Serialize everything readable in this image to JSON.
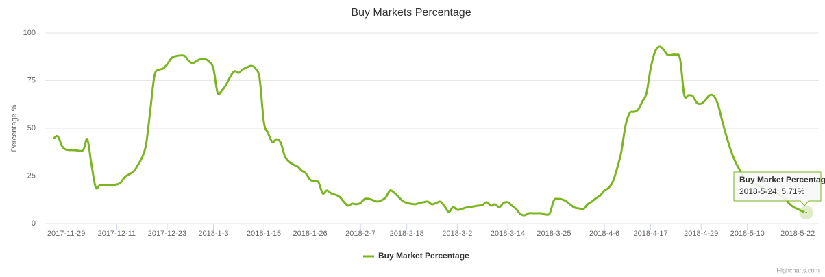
{
  "chart_data": {
    "type": "line",
    "title": "Buy Markets Percentage",
    "y_label": "Percentage %",
    "credit": "Highcharts.com",
    "grid": true,
    "legend": "bottom",
    "xlim": [
      "2017-11-24",
      "2018-5-27"
    ],
    "xticks": [
      "2017-11-29",
      "2017-12-11",
      "2017-12-23",
      "2018-1-3",
      "2018-1-15",
      "2018-1-26",
      "2018-2-7",
      "2018-2-18",
      "2018-3-2",
      "2018-3-14",
      "2018-3-25",
      "2018-4-6",
      "2018-4-17",
      "2018-4-29",
      "2018-5-10",
      "2018-5-22"
    ],
    "ylim": [
      0,
      100
    ],
    "yticks": [
      0,
      25,
      50,
      75,
      100
    ],
    "x": [
      "2017-11-26",
      "2017-11-27",
      "2017-11-28",
      "2017-11-29",
      "2017-12-1",
      "2017-12-3",
      "2017-12-4",
      "2017-12-5",
      "2017-12-6",
      "2017-12-7",
      "2017-12-9",
      "2017-12-11",
      "2017-12-12",
      "2017-12-13",
      "2017-12-15",
      "2017-12-16",
      "2017-12-17",
      "2017-12-18",
      "2017-12-19",
      "2017-12-20",
      "2017-12-21",
      "2017-12-22",
      "2017-12-23",
      "2017-12-24",
      "2017-12-25",
      "2017-12-27",
      "2017-12-28",
      "2017-12-29",
      "2017-12-30",
      "2017-12-31",
      "2018-1-1",
      "2018-1-2",
      "2018-1-3",
      "2018-1-4",
      "2018-1-5",
      "2018-1-6",
      "2018-1-7",
      "2018-1-8",
      "2018-1-9",
      "2018-1-10",
      "2018-1-11",
      "2018-1-12",
      "2018-1-13",
      "2018-1-14",
      "2018-1-15",
      "2018-1-16",
      "2018-1-17",
      "2018-1-18",
      "2018-1-19",
      "2018-1-20",
      "2018-1-21",
      "2018-1-22",
      "2018-1-23",
      "2018-1-24",
      "2018-1-25",
      "2018-1-26",
      "2018-1-27",
      "2018-1-28",
      "2018-1-29",
      "2018-1-30",
      "2018-1-31",
      "2018-2-1",
      "2018-2-2",
      "2018-2-3",
      "2018-2-4",
      "2018-2-5",
      "2018-2-6",
      "2018-2-7",
      "2018-2-8",
      "2018-2-9",
      "2018-2-10",
      "2018-2-11",
      "2018-2-12",
      "2018-2-13",
      "2018-2-14",
      "2018-2-15",
      "2018-2-16",
      "2018-2-17",
      "2018-2-18",
      "2018-2-19",
      "2018-2-20",
      "2018-2-21",
      "2018-2-22",
      "2018-2-23",
      "2018-2-24",
      "2018-2-25",
      "2018-2-26",
      "2018-2-27",
      "2018-2-28",
      "2018-3-1",
      "2018-3-2",
      "2018-3-3",
      "2018-3-4",
      "2018-3-5",
      "2018-3-6",
      "2018-3-7",
      "2018-3-8",
      "2018-3-9",
      "2018-3-10",
      "2018-3-11",
      "2018-3-12",
      "2018-3-13",
      "2018-3-14",
      "2018-3-15",
      "2018-3-16",
      "2018-3-17",
      "2018-3-18",
      "2018-3-19",
      "2018-3-20",
      "2018-3-21",
      "2018-3-22",
      "2018-3-23",
      "2018-3-24",
      "2018-3-25",
      "2018-3-26",
      "2018-3-27",
      "2018-3-28",
      "2018-3-29",
      "2018-3-30",
      "2018-3-31",
      "2018-4-1",
      "2018-4-2",
      "2018-4-3",
      "2018-4-4",
      "2018-4-5",
      "2018-4-6",
      "2018-4-7",
      "2018-4-8",
      "2018-4-9",
      "2018-4-10",
      "2018-4-11",
      "2018-4-12",
      "2018-4-13",
      "2018-4-14",
      "2018-4-15",
      "2018-4-16",
      "2018-4-17",
      "2018-4-18",
      "2018-4-19",
      "2018-4-20",
      "2018-4-21",
      "2018-4-22",
      "2018-4-23",
      "2018-4-24",
      "2018-4-25",
      "2018-4-26",
      "2018-4-27",
      "2018-4-28",
      "2018-4-29",
      "2018-4-30",
      "2018-5-1",
      "2018-5-2",
      "2018-5-3",
      "2018-5-4",
      "2018-5-5",
      "2018-5-6",
      "2018-5-7",
      "2018-5-8",
      "2018-5-9",
      "2018-5-10",
      "2018-5-11",
      "2018-5-12",
      "2018-5-13",
      "2018-5-14",
      "2018-5-15",
      "2018-5-16",
      "2018-5-17",
      "2018-5-18",
      "2018-5-19",
      "2018-5-20",
      "2018-5-21",
      "2018-5-22",
      "2018-5-23",
      "2018-5-24"
    ],
    "series": [
      {
        "name": "Buy Market Percentage",
        "color": "#7cb522",
        "values": [
          44.6,
          45.7,
          40.6,
          38.8,
          38.5,
          38.5,
          44.2,
          31,
          19,
          20,
          20,
          20.5,
          21.6,
          24.5,
          27.3,
          30.6,
          34.5,
          41.7,
          59.7,
          77.7,
          80.6,
          81.3,
          83.5,
          86.7,
          87.8,
          88.1,
          85.6,
          84.2,
          85.3,
          86.3,
          86.3,
          84.9,
          81.3,
          68.7,
          69.8,
          72.7,
          77,
          79.9,
          79.1,
          80.9,
          82,
          82.7,
          81.3,
          75.9,
          53.2,
          47.5,
          42.8,
          44.2,
          42.4,
          35.3,
          32.4,
          30.9,
          29.9,
          27.7,
          26.3,
          23,
          22.3,
          21.6,
          15.8,
          17.3,
          15.8,
          15.1,
          14,
          11.5,
          9.4,
          10.4,
          10.1,
          10.8,
          12.9,
          12.9,
          12.2,
          11.5,
          12.2,
          13.7,
          17.3,
          16.2,
          14,
          11.9,
          10.8,
          10.4,
          10.1,
          10.8,
          11.2,
          11.5,
          10.1,
          10.8,
          11.5,
          9,
          6.1,
          8.6,
          7.2,
          7.6,
          8.3,
          8.6,
          9,
          9.4,
          9.7,
          11.2,
          9.4,
          10.1,
          8.6,
          10.8,
          11.2,
          9.4,
          7.6,
          5,
          4.3,
          5.4,
          5.4,
          5.4,
          5.4,
          4.7,
          5.4,
          12.2,
          12.9,
          12.6,
          11.5,
          9.7,
          8.3,
          7.9,
          7.6,
          10.1,
          11.5,
          13.3,
          14.7,
          17.3,
          18.7,
          21.9,
          28.8,
          37.4,
          51.1,
          57.9,
          58.6,
          59.7,
          64,
          68.3,
          81.3,
          89.9,
          92.8,
          91.4,
          88.5,
          88.5,
          88.5,
          86.3,
          67.3,
          67.3,
          66.9,
          63.3,
          62.9,
          64.7,
          67.3,
          66.9,
          62.6,
          54,
          46,
          38.8,
          33.1,
          28.8,
          25.2,
          23,
          21.6,
          20.1,
          19.4,
          18.3,
          17.3,
          16.5,
          15.5,
          14.4,
          12.9,
          10.4,
          8.6,
          7.6,
          6.5,
          5.71
        ]
      }
    ],
    "tooltip": {
      "title": "Buy Market Percentage",
      "text": "2018-5-24: 5.71%"
    }
  }
}
